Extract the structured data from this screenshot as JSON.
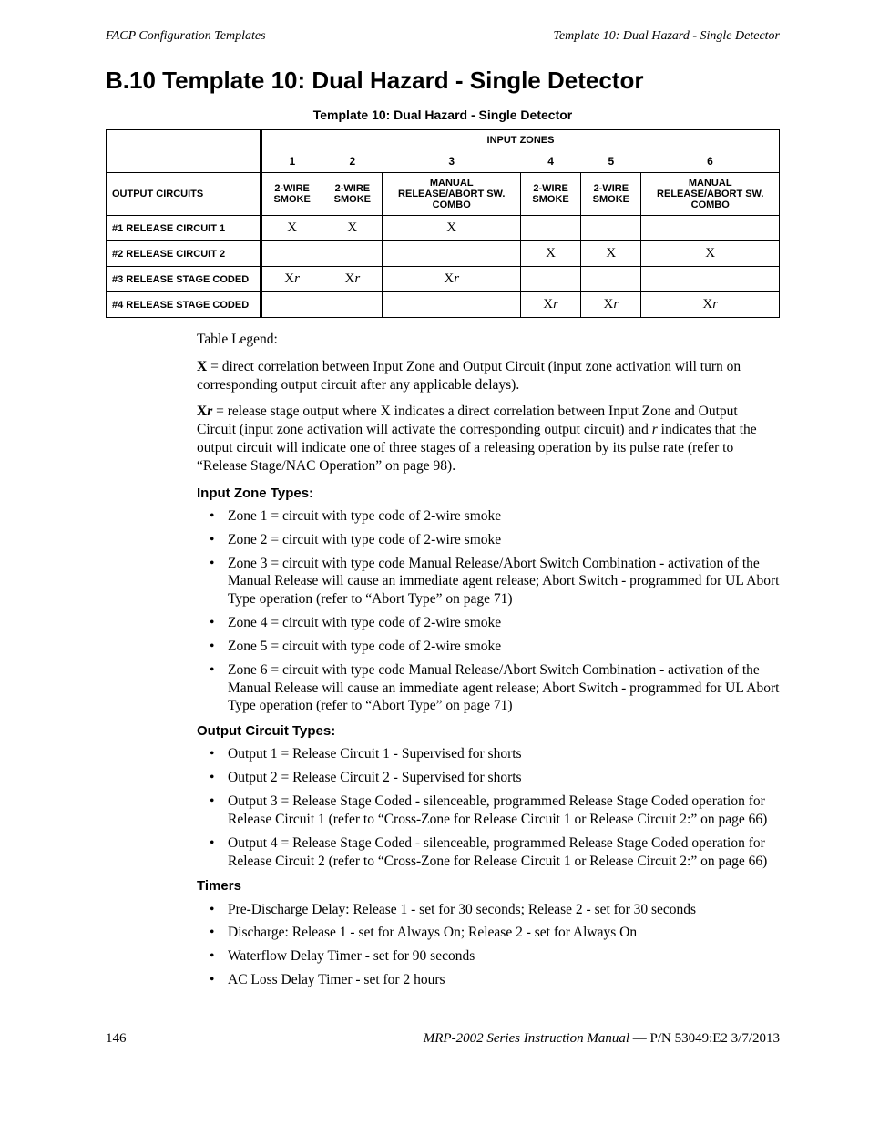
{
  "header": {
    "left": "FACP Configuration Templates",
    "right": "Template 10: Dual Hazard - Single Detector"
  },
  "title": "B.10  Template 10: Dual Hazard - Single Detector",
  "tableCaption": "Template 10:  Dual Hazard - Single Detector",
  "table": {
    "inputZonesLabel": "INPUT ZONES",
    "colNums": [
      "1",
      "2",
      "3",
      "4",
      "5",
      "6"
    ],
    "outputCircuitsLabel": "OUTPUT CIRCUITS",
    "zoneHeaders": [
      "2-WIRE SMOKE",
      "2-WIRE SMOKE",
      "MANUAL RELEASE/ABORT SW. COMBO",
      "2-WIRE SMOKE",
      "2-WIRE SMOKE",
      "MANUAL RELEASE/ABORT SW. COMBO"
    ],
    "rows": [
      {
        "label": "#1 RELEASE CIRCUIT 1",
        "cells": [
          "X",
          "X",
          "X",
          "",
          "",
          ""
        ]
      },
      {
        "label": "#2 RELEASE CIRCUIT 2",
        "cells": [
          "",
          "",
          "",
          "X",
          "X",
          "X"
        ]
      },
      {
        "label": "#3 RELEASE STAGE CODED",
        "cells": [
          "Xr",
          "Xr",
          "Xr",
          "",
          "",
          ""
        ]
      },
      {
        "label": "#4 RELEASE STAGE CODED",
        "cells": [
          "",
          "",
          "",
          "Xr",
          "Xr",
          "Xr"
        ]
      }
    ]
  },
  "legend": {
    "intro": "Table Legend:",
    "x_pre": "X",
    "x_post": " = direct correlation between Input Zone and Output Circuit (input zone activation will turn on corresponding output circuit after any applicable delays).",
    "xr_pre": "X",
    "xr_r": "r",
    "xr_post1": " = release stage output where X indicates a direct correlation between Input Zone and Output Circuit (input zone activation will activate the corresponding output circuit) and ",
    "xr_r2": "r",
    "xr_post2": " indicates that the output circuit will indicate one of three stages of a releasing operation by its pulse rate (refer to “Release Stage/NAC Operation” on page 98)."
  },
  "inputZonesHead": "Input Zone Types:",
  "inputZones": [
    "Zone 1 = circuit with type code of 2-wire smoke",
    "Zone 2 = circuit with type code of 2-wire smoke",
    "Zone 3 = circuit with type code Manual Release/Abort Switch Combination - activation of the Manual Release will cause an immediate agent release; Abort Switch - programmed for UL Abort Type operation (refer to “Abort Type” on page 71)",
    "Zone 4 = circuit with type code of 2-wire smoke",
    "Zone 5 = circuit with type code of 2-wire smoke",
    "Zone 6 = circuit with type code Manual Release/Abort Switch Combination - activation of the Manual Release will cause an immediate agent release; Abort Switch - programmed for UL Abort Type operation (refer to “Abort Type” on page 71)"
  ],
  "outputHead": "Output Circuit Types:",
  "outputs": [
    "Output 1 = Release Circuit 1 - Supervised for shorts",
    "Output 2 = Release Circuit 2 - Supervised for shorts",
    "Output 3 = Release Stage Coded - silenceable, programmed Release Stage Coded operation for Release Circuit 1 (refer to “Cross-Zone for Release Circuit 1 or Release Circuit 2:” on page 66)",
    "Output 4 = Release Stage Coded - silenceable, programmed Release Stage Coded operation for Release Circuit 2 (refer to “Cross-Zone for Release Circuit 1 or Release Circuit 2:” on page 66)"
  ],
  "timersHead": "Timers",
  "timers": [
    "Pre-Discharge Delay: Release 1 - set for 30 seconds; Release 2 - set for 30 seconds",
    "Discharge: Release 1 - set for Always On; Release 2 - set for Always On",
    "Waterflow Delay Timer - set for 90 seconds",
    "AC Loss Delay Timer - set for 2 hours"
  ],
  "footer": {
    "pageNum": "146",
    "manual": "MRP-2002 Series Instruction Manual",
    "pn": " — P/N 53049:E2  3/7/2013"
  }
}
